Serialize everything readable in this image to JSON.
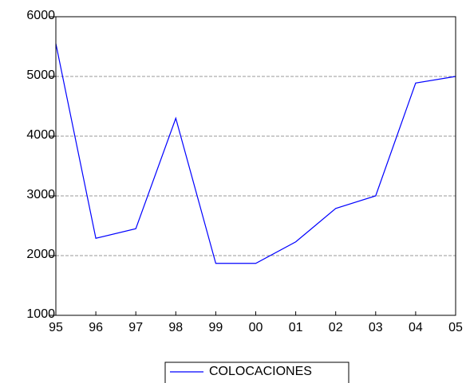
{
  "chart_data": {
    "type": "line",
    "categories": [
      "95",
      "96",
      "97",
      "98",
      "99",
      "00",
      "01",
      "02",
      "03",
      "04",
      "05"
    ],
    "series": [
      {
        "name": "COLOCACIONES",
        "color": "#0000ff",
        "values": [
          5550,
          2290,
          2450,
          4300,
          1870,
          1870,
          2230,
          2790,
          3000,
          4890,
          5000
        ]
      }
    ],
    "ylim": [
      1000,
      6000
    ],
    "yticks": [
      1000,
      2000,
      3000,
      4000,
      5000,
      6000
    ],
    "grid": true
  }
}
